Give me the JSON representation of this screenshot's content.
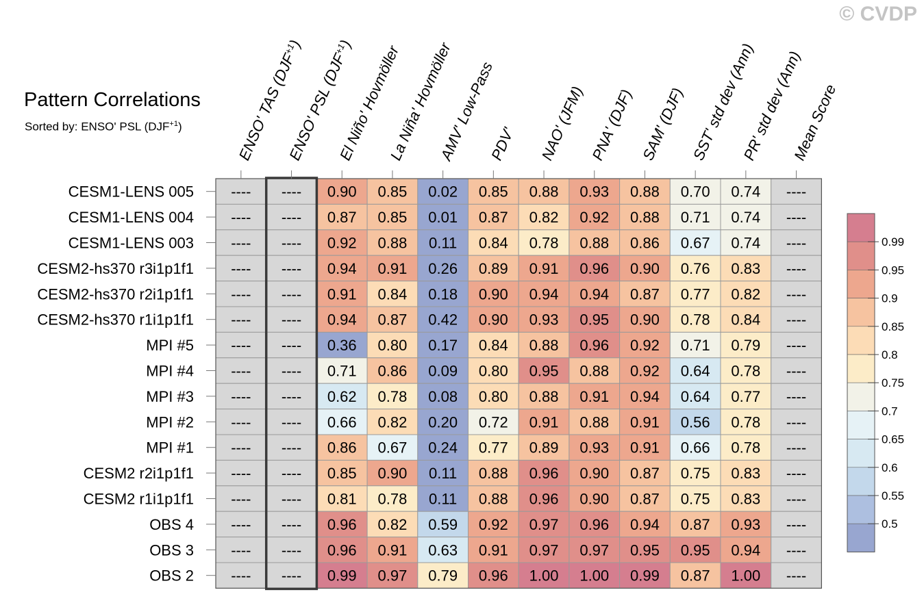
{
  "watermark": "© CVDP",
  "title": "Pattern Correlations",
  "subtitle": "Sorted by: ENSO' PSL (DJF",
  "subtitle_sup": "+1",
  "subtitle_end": ")",
  "chart_data": {
    "type": "heatmap",
    "columns": [
      {
        "label": "ENSO' TAS (DJF",
        "sup": "+1",
        "end": ")"
      },
      {
        "label": "ENSO' PSL (DJF",
        "sup": "+1",
        "end": ")"
      },
      {
        "label": "El Niño' Hovmöller"
      },
      {
        "label": "La Niña' Hovmöller"
      },
      {
        "label": "AMV' Low-Pass"
      },
      {
        "label": "PDV'"
      },
      {
        "label": "NAO' (JFM)"
      },
      {
        "label": "PNA' (DJF)"
      },
      {
        "label": "SAM' (DJF)"
      },
      {
        "label": "SST' std dev (Ann)"
      },
      {
        "label": "PR' std dev (Ann)"
      },
      {
        "label": "Mean Score"
      }
    ],
    "rows": [
      "CESM1-LENS 005",
      "CESM1-LENS 004",
      "CESM1-LENS 003",
      "CESM2-hs370 r3i1p1f1",
      "CESM2-hs370 r2i1p1f1",
      "CESM2-hs370 r1i1p1f1",
      "MPI #5",
      "MPI #4",
      "MPI #3",
      "MPI #2",
      "MPI #1",
      "CESM2 r2i1p1f1",
      "CESM2 r1i1p1f1",
      "OBS 4",
      "OBS 3",
      "OBS 2"
    ],
    "missing_label": "----",
    "highlighted_column": 1,
    "values": [
      [
        null,
        null,
        "0.90",
        "0.85",
        "0.02",
        "0.85",
        "0.88",
        "0.93",
        "0.88",
        "0.70",
        "0.74",
        null
      ],
      [
        null,
        null,
        "0.87",
        "0.85",
        "0.01",
        "0.87",
        "0.82",
        "0.92",
        "0.88",
        "0.71",
        "0.74",
        null
      ],
      [
        null,
        null,
        "0.92",
        "0.88",
        "0.11",
        "0.84",
        "0.78",
        "0.88",
        "0.86",
        "0.67",
        "0.74",
        null
      ],
      [
        null,
        null,
        "0.94",
        "0.91",
        "0.26",
        "0.89",
        "0.91",
        "0.96",
        "0.90",
        "0.76",
        "0.83",
        null
      ],
      [
        null,
        null,
        "0.91",
        "0.84",
        "0.18",
        "0.90",
        "0.94",
        "0.94",
        "0.87",
        "0.77",
        "0.82",
        null
      ],
      [
        null,
        null,
        "0.94",
        "0.87",
        "0.42",
        "0.90",
        "0.93",
        "0.95",
        "0.90",
        "0.78",
        "0.84",
        null
      ],
      [
        null,
        null,
        "0.36",
        "0.80",
        "0.17",
        "0.84",
        "0.88",
        "0.96",
        "0.92",
        "0.71",
        "0.79",
        null
      ],
      [
        null,
        null,
        "0.71",
        "0.86",
        "0.09",
        "0.80",
        "0.95",
        "0.88",
        "0.92",
        "0.64",
        "0.78",
        null
      ],
      [
        null,
        null,
        "0.62",
        "0.78",
        "0.08",
        "0.80",
        "0.88",
        "0.91",
        "0.94",
        "0.64",
        "0.77",
        null
      ],
      [
        null,
        null,
        "0.66",
        "0.82",
        "0.20",
        "0.72",
        "0.91",
        "0.88",
        "0.91",
        "0.56",
        "0.78",
        null
      ],
      [
        null,
        null,
        "0.86",
        "0.67",
        "0.24",
        "0.77",
        "0.89",
        "0.93",
        "0.91",
        "0.66",
        "0.78",
        null
      ],
      [
        null,
        null,
        "0.85",
        "0.90",
        "0.11",
        "0.88",
        "0.96",
        "0.90",
        "0.87",
        "0.75",
        "0.83",
        null
      ],
      [
        null,
        null,
        "0.81",
        "0.78",
        "0.11",
        "0.88",
        "0.96",
        "0.90",
        "0.87",
        "0.75",
        "0.83",
        null
      ],
      [
        null,
        null,
        "0.96",
        "0.82",
        "0.59",
        "0.92",
        "0.97",
        "0.96",
        "0.94",
        "0.87",
        "0.93",
        null
      ],
      [
        null,
        null,
        "0.96",
        "0.91",
        "0.63",
        "0.91",
        "0.97",
        "0.97",
        "0.95",
        "0.95",
        "0.94",
        null
      ],
      [
        null,
        null,
        "0.99",
        "0.97",
        "0.79",
        "0.96",
        "1.00",
        "1.00",
        "0.99",
        "0.87",
        "1.00",
        null
      ]
    ],
    "colorbar": {
      "labels": [
        "0.99",
        "0.95",
        "0.9",
        "0.85",
        "0.8",
        "0.75",
        "0.7",
        "0.65",
        "0.6",
        "0.55",
        "0.5"
      ],
      "thresholds": [
        0.5,
        0.55,
        0.6,
        0.65,
        0.7,
        0.75,
        0.8,
        0.85,
        0.9,
        0.95,
        0.99
      ],
      "colors": [
        "#98a6d0",
        "#adbfe0",
        "#c3d8eb",
        "#d7e9f2",
        "#e6f2f6",
        "#f2f2e8",
        "#fcecc8",
        "#fcdcb6",
        "#f6c3a0",
        "#eda78e",
        "#e08f8a",
        "#d57e8f"
      ]
    },
    "missing_color": "#d7d7d7"
  }
}
